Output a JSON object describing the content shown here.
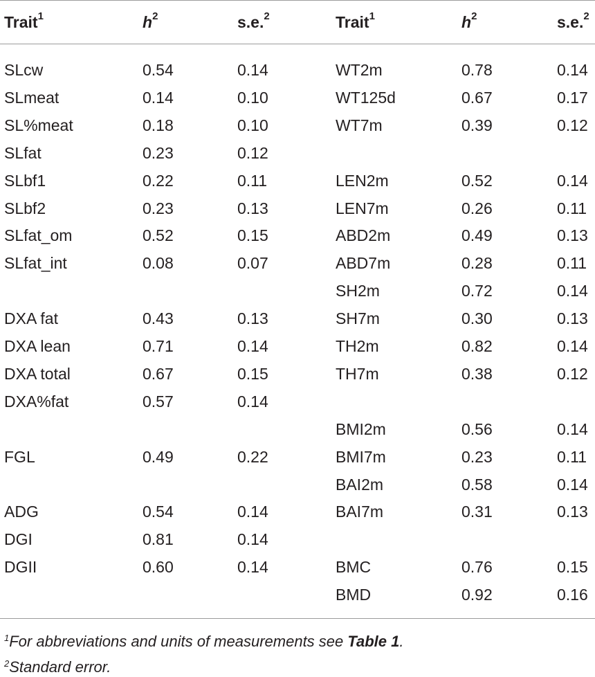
{
  "headers": {
    "trait": "Trait",
    "trait_sup": "1",
    "h": "h",
    "h_sup": "2",
    "se": "s.e.",
    "se_sup": "2"
  },
  "left_rows": [
    {
      "trait": "SLcw",
      "h2": "0.54",
      "se": "0.14"
    },
    {
      "trait": "SLmeat",
      "h2": "0.14",
      "se": "0.10"
    },
    {
      "trait": "SL%meat",
      "h2": "0.18",
      "se": "0.10"
    },
    {
      "trait": "SLfat",
      "h2": "0.23",
      "se": "0.12"
    },
    {
      "trait": "SLbf1",
      "h2": "0.22",
      "se": "0.11"
    },
    {
      "trait": "SLbf2",
      "h2": "0.23",
      "se": "0.13"
    },
    {
      "trait": "SLfat_om",
      "h2": "0.52",
      "se": "0.15"
    },
    {
      "trait": "SLfat_int",
      "h2": "0.08",
      "se": "0.07"
    },
    {
      "trait": "",
      "h2": "",
      "se": ""
    },
    {
      "trait": "DXA fat",
      "h2": "0.43",
      "se": "0.13"
    },
    {
      "trait": "DXA lean",
      "h2": "0.71",
      "se": "0.14"
    },
    {
      "trait": "DXA total",
      "h2": "0.67",
      "se": "0.15"
    },
    {
      "trait": "DXA%fat",
      "h2": "0.57",
      "se": "0.14"
    },
    {
      "trait": "",
      "h2": "",
      "se": ""
    },
    {
      "trait": "FGL",
      "h2": "0.49",
      "se": "0.22"
    },
    {
      "trait": "",
      "h2": "",
      "se": ""
    },
    {
      "trait": "ADG",
      "h2": "0.54",
      "se": "0.14"
    },
    {
      "trait": "DGI",
      "h2": "0.81",
      "se": "0.14"
    },
    {
      "trait": "DGII",
      "h2": "0.60",
      "se": "0.14"
    },
    {
      "trait": "",
      "h2": "",
      "se": ""
    }
  ],
  "right_rows": [
    {
      "trait": "WT2m",
      "h2": "0.78",
      "se": "0.14"
    },
    {
      "trait": "WT125d",
      "h2": "0.67",
      "se": "0.17"
    },
    {
      "trait": "WT7m",
      "h2": "0.39",
      "se": "0.12"
    },
    {
      "trait": "",
      "h2": "",
      "se": ""
    },
    {
      "trait": "LEN2m",
      "h2": "0.52",
      "se": "0.14"
    },
    {
      "trait": "LEN7m",
      "h2": "0.26",
      "se": "0.11"
    },
    {
      "trait": "ABD2m",
      "h2": "0.49",
      "se": "0.13"
    },
    {
      "trait": "ABD7m",
      "h2": "0.28",
      "se": "0.11"
    },
    {
      "trait": "SH2m",
      "h2": "0.72",
      "se": "0.14"
    },
    {
      "trait": "SH7m",
      "h2": "0.30",
      "se": "0.13"
    },
    {
      "trait": "TH2m",
      "h2": "0.82",
      "se": "0.14"
    },
    {
      "trait": "TH7m",
      "h2": "0.38",
      "se": "0.12"
    },
    {
      "trait": "",
      "h2": "",
      "se": ""
    },
    {
      "trait": "BMI2m",
      "h2": "0.56",
      "se": "0.14"
    },
    {
      "trait": "BMI7m",
      "h2": "0.23",
      "se": "0.11"
    },
    {
      "trait": "BAI2m",
      "h2": "0.58",
      "se": "0.14"
    },
    {
      "trait": "BAI7m",
      "h2": "0.31",
      "se": "0.13"
    },
    {
      "trait": "",
      "h2": "",
      "se": ""
    },
    {
      "trait": "BMC",
      "h2": "0.76",
      "se": "0.15"
    },
    {
      "trait": "BMD",
      "h2": "0.92",
      "se": "0.16"
    }
  ],
  "footnotes": {
    "f1_mark": "1",
    "f1_text": "For abbreviations and units of measurements see ",
    "f1_ref": "Table 1",
    "f1_end": ".",
    "f2_mark": "2",
    "f2_text": "Standard error."
  }
}
